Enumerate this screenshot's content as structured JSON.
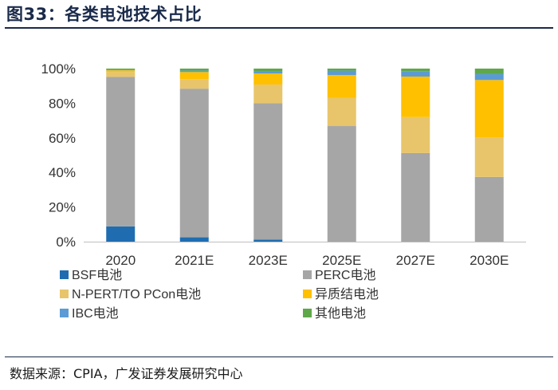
{
  "header": {
    "title": "图33：各类电池技术占比"
  },
  "footer": {
    "source": "数据来源：CPIA，广发证券发展研究中心"
  },
  "chart_data": {
    "type": "bar",
    "stacked": true,
    "categories": [
      "2020",
      "2021E",
      "2023E",
      "2025E",
      "2027E",
      "2030E"
    ],
    "series": [
      {
        "name": "BSF电池",
        "color": "#1f6db0",
        "values": [
          8.8,
          2.5,
          1.2,
          0,
          0,
          0
        ]
      },
      {
        "name": "PERC电池",
        "color": "#a6a6a6",
        "values": [
          86.4,
          85.9,
          78.8,
          66.8,
          51.2,
          37.4
        ]
      },
      {
        "name": "N-PERT/TO PCon电池",
        "color": "#e8c56b",
        "values": [
          2.8,
          5.5,
          10.8,
          16.2,
          20.8,
          22.8
        ]
      },
      {
        "name": "异质结电池",
        "color": "#ffc000",
        "values": [
          1.0,
          4.1,
          6.4,
          13.3,
          23.4,
          33.2
        ]
      },
      {
        "name": "IBC电池",
        "color": "#5b9bd5",
        "values": [
          0.2,
          0.8,
          1.4,
          2.5,
          3.1,
          3.4
        ]
      },
      {
        "name": "其他电池",
        "color": "#5ea84a",
        "values": [
          0.8,
          1.2,
          1.4,
          1.2,
          1.5,
          3.2
        ]
      }
    ],
    "ylim": [
      0,
      100
    ],
    "yticks": [
      "0%",
      "20%",
      "40%",
      "60%",
      "80%",
      "100%"
    ],
    "legend_position": "bottom"
  }
}
